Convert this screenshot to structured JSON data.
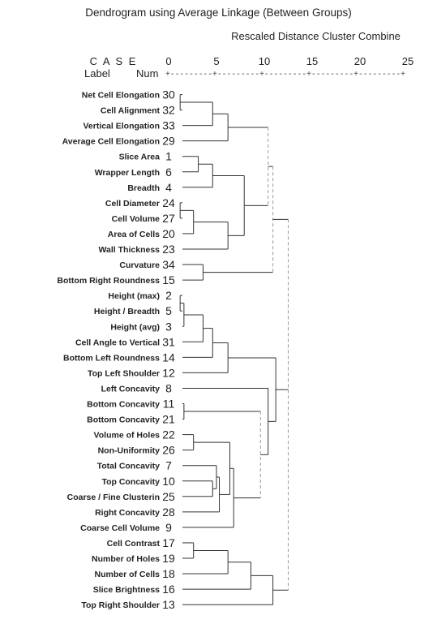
{
  "chart_data": {
    "type": "dendrogram",
    "title": "Dendrogram using Average Linkage (Between Groups)",
    "subtitle": "Rescaled Distance Cluster Combine",
    "case_header": "C A S E",
    "label_header": "Label",
    "num_header": "Num",
    "axis_ticks": [
      0,
      5,
      10,
      15,
      20,
      25
    ],
    "axis_range": [
      0,
      25
    ],
    "axis_rule": "+---------+---------+---------+---------+---------+",
    "leaves": [
      {
        "label": "Net Cell Elongation",
        "num": "30"
      },
      {
        "label": "Cell Alignment",
        "num": "32"
      },
      {
        "label": "Vertical Elongation",
        "num": "33"
      },
      {
        "label": "Average Cell Elongation",
        "num": "29"
      },
      {
        "label": "Slice Area",
        "num": "1"
      },
      {
        "label": "Wrapper Length",
        "num": "6"
      },
      {
        "label": "Breadth",
        "num": "4"
      },
      {
        "label": "Cell Diameter",
        "num": "24"
      },
      {
        "label": "Cell Volume",
        "num": "27"
      },
      {
        "label": "Area of Cells",
        "num": "20"
      },
      {
        "label": "Wall Thickness",
        "num": "23"
      },
      {
        "label": "Curvature",
        "num": "34"
      },
      {
        "label": "Bottom Right  Roundness",
        "num": "15"
      },
      {
        "label": "Height (max)",
        "num": "2"
      },
      {
        "label": "Height / Breadth",
        "num": "5"
      },
      {
        "label": "Height (avg)",
        "num": "3"
      },
      {
        "label": "Cell Angle to Vertical",
        "num": "31"
      },
      {
        "label": "Bottom Left Roundness",
        "num": "14"
      },
      {
        "label": "Top Left Shoulder",
        "num": "12"
      },
      {
        "label": "Left Concavity",
        "num": "8"
      },
      {
        "label": "Bottom Concavity",
        "num": "11"
      },
      {
        "label": "Bottom Concavity",
        "num": "21"
      },
      {
        "label": "Volume of Holes",
        "num": "22"
      },
      {
        "label": "Non-Uniformity",
        "num": "26"
      },
      {
        "label": "Total Concavity",
        "num": "7"
      },
      {
        "label": "Top Concavity",
        "num": "10"
      },
      {
        "label": "Coarse / Fine Clusterin",
        "num": "25"
      },
      {
        "label": "Right Concavity",
        "num": "28"
      },
      {
        "label": "Coarse Cell Volume",
        "num": "9"
      },
      {
        "label": "Cell Contrast",
        "num": "17"
      },
      {
        "label": "Number of Holes",
        "num": "19"
      },
      {
        "label": "Number of Cells",
        "num": "18"
      },
      {
        "label": "Slice Brightness",
        "num": "16"
      },
      {
        "label": "Top Right Shoulder",
        "num": "13"
      }
    ],
    "merges": [
      {
        "id": "A",
        "a": 1,
        "b": 0,
        "d": 1.2
      },
      {
        "id": "B",
        "a": "A",
        "b": 2,
        "d": 4.6
      },
      {
        "id": "C",
        "a": "B",
        "b": 3,
        "d": 6.2
      },
      {
        "id": "D",
        "a": 4,
        "b": 5,
        "d": 3.1
      },
      {
        "id": "E",
        "a": "D",
        "b": 6,
        "d": 4.6
      },
      {
        "id": "F",
        "a": 8,
        "b": 7,
        "d": 1.2
      },
      {
        "id": "G",
        "a": "F",
        "b": 9,
        "d": 2.6
      },
      {
        "id": "H",
        "a": "G",
        "b": 10,
        "d": 6.2
      },
      {
        "id": "I",
        "a": "E",
        "b": "H",
        "d": 7.9
      },
      {
        "id": "J",
        "a": "C",
        "b": "I",
        "d": 10.4
      },
      {
        "id": "K",
        "a": 11,
        "b": 12,
        "d": 3.6
      },
      {
        "id": "L",
        "a": "J",
        "b": "K",
        "d": 10.9
      },
      {
        "id": "M",
        "a": 14,
        "b": 13,
        "d": 1.2
      },
      {
        "id": "N",
        "a": "M",
        "b": 15,
        "d": 1.6
      },
      {
        "id": "O",
        "a": "N",
        "b": 16,
        "d": 3.6
      },
      {
        "id": "P",
        "a": "O",
        "b": 17,
        "d": 4.6
      },
      {
        "id": "Q",
        "a": "P",
        "b": 18,
        "d": 6.2
      },
      {
        "id": "R",
        "a": 20,
        "b": 21,
        "d": 1.6
      },
      {
        "id": "S",
        "a": 22,
        "b": 23,
        "d": 2.6
      },
      {
        "id": "T",
        "a": 25,
        "b": 26,
        "d": 4.6
      },
      {
        "id": "U",
        "a": 24,
        "b": "T",
        "d": 5.0
      },
      {
        "id": "V",
        "a": 27,
        "b": "U",
        "d": 5.3
      },
      {
        "id": "W",
        "a": "S",
        "b": "V",
        "d": 6.4
      },
      {
        "id": "X",
        "a": "W",
        "b": 28,
        "d": 6.8
      },
      {
        "id": "Y",
        "a": "R",
        "b": "X",
        "d": 9.6
      },
      {
        "id": "Z",
        "a": 19,
        "b": "Y",
        "d": 10.4
      },
      {
        "id": "AA",
        "a": "Q",
        "b": "Z",
        "d": 11.2
      },
      {
        "id": "AB",
        "a": "L",
        "b": "AA",
        "d": 12.5
      },
      {
        "id": "AC",
        "a": 29,
        "b": 30,
        "d": 2.6
      },
      {
        "id": "AD",
        "a": "AC",
        "b": 31,
        "d": 6.2
      },
      {
        "id": "AE",
        "a": "AD",
        "b": 32,
        "d": 8.6
      },
      {
        "id": "AF",
        "a": "AE",
        "b": 33,
        "d": 10.9
      },
      {
        "id": "AG",
        "a": "AB",
        "b": "AF",
        "d": 12.5
      }
    ]
  }
}
